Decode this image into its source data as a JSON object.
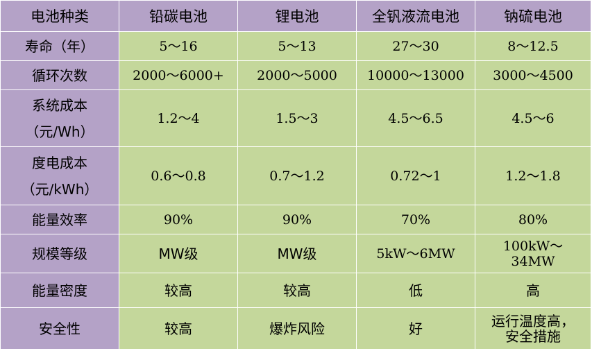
{
  "table": {
    "header": [
      "电池种类",
      "铅碳电池",
      "锂电池",
      "全钒液流电池",
      "钠硫电池"
    ],
    "rows": [
      {
        "label": [
          "寿命（年）"
        ],
        "values": [
          [
            "5～16"
          ],
          [
            "5～13"
          ],
          [
            "27～30"
          ],
          [
            "8～12.5"
          ]
        ]
      },
      {
        "label": [
          "循环次数"
        ],
        "values": [
          [
            "2000～6000+"
          ],
          [
            "2000～5000"
          ],
          [
            "10000～13000"
          ],
          [
            "3000～4500"
          ]
        ]
      },
      {
        "label": [
          "系统成本",
          "（元/Wh）"
        ],
        "values": [
          [
            "1.2～4"
          ],
          [
            "1.5～3"
          ],
          [
            "4.5～6.5"
          ],
          [
            "4.5～6"
          ]
        ]
      },
      {
        "label": [
          "度电成本",
          "（元/kWh）"
        ],
        "values": [
          [
            "0.6～0.8"
          ],
          [
            "0.7～1.2"
          ],
          [
            "0.72～1"
          ],
          [
            "1.2～1.8"
          ]
        ]
      },
      {
        "label": [
          "能量效率"
        ],
        "values": [
          [
            "90%"
          ],
          [
            "90%"
          ],
          [
            "70%"
          ],
          [
            "80%"
          ]
        ]
      },
      {
        "label": [
          "规模等级"
        ],
        "values": [
          [
            "MW级"
          ],
          [
            "MW级"
          ],
          [
            "5kW～6MW"
          ],
          [
            "100kW～",
            "34MW"
          ]
        ]
      },
      {
        "label": [
          "能量密度"
        ],
        "values": [
          [
            "较高"
          ],
          [
            "较高"
          ],
          [
            "低"
          ],
          [
            "高"
          ]
        ]
      },
      {
        "label": [
          "安全性"
        ],
        "values": [
          [
            "较高"
          ],
          [
            "爆炸风险"
          ],
          [
            "好"
          ],
          [
            "运行温度高，",
            "安全措施"
          ]
        ]
      }
    ]
  },
  "colors": {
    "header_bg": "#b4a2c7",
    "row_label_bg": "#b4a2c7",
    "cell_bg": "#c4d79b",
    "border": "#ffffff"
  }
}
